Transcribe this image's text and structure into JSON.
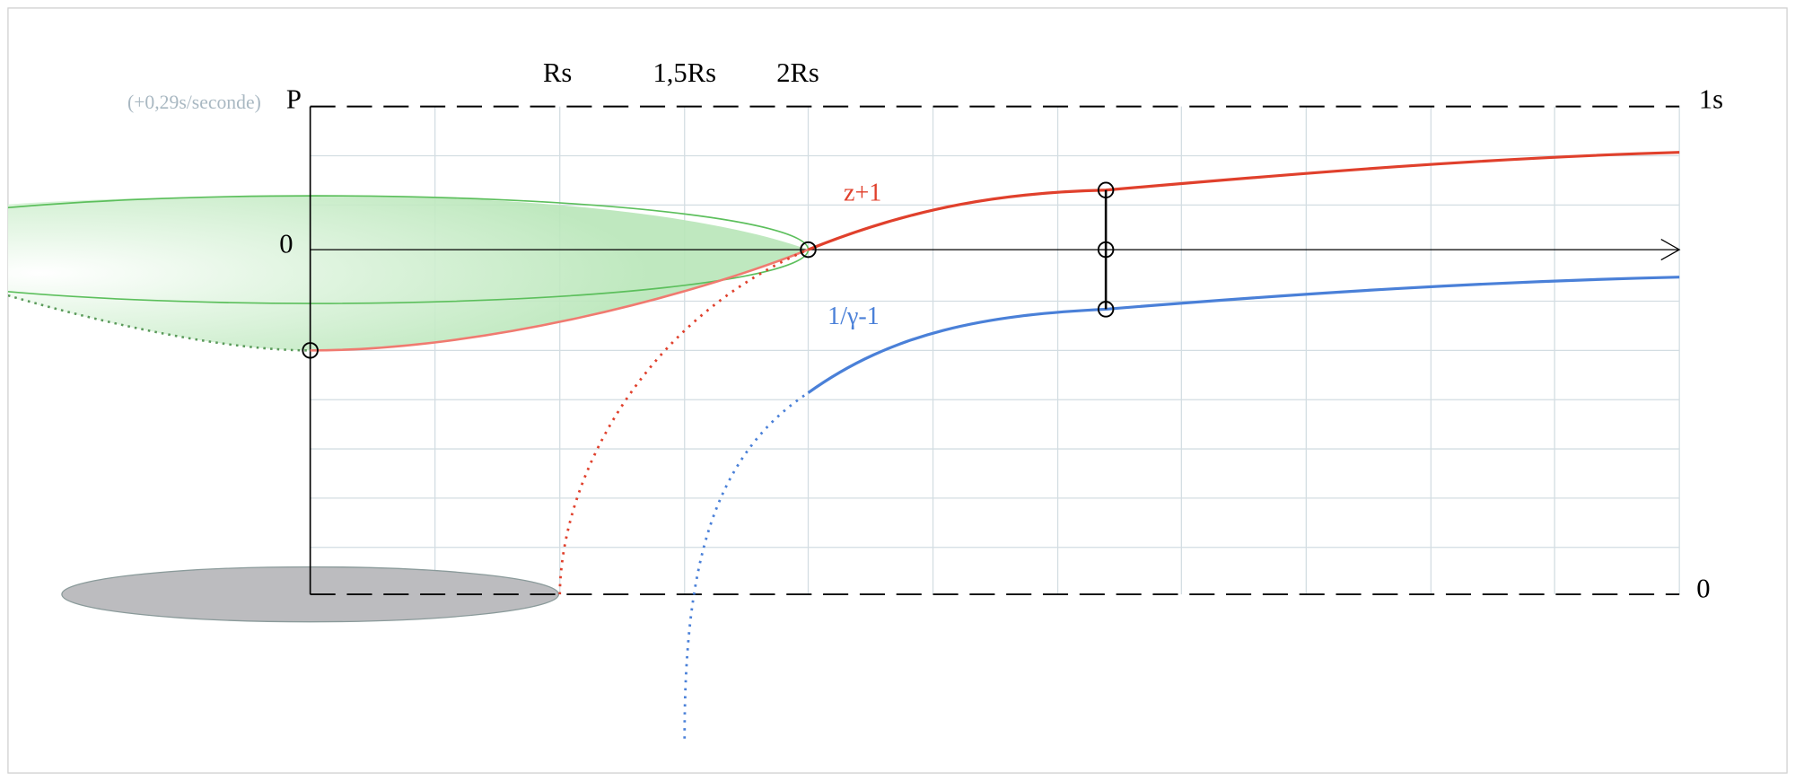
{
  "labels": {
    "rate": "(+0,29s/seconde)",
    "p_axis": "P",
    "rs": "Rs",
    "rs_15": "1,5Rs",
    "rs_2": "2Rs",
    "top_right": "1s",
    "zero_left": "0",
    "zero_right": "0",
    "red_curve": "z+1",
    "blue_curve": "1/γ-1"
  }
}
